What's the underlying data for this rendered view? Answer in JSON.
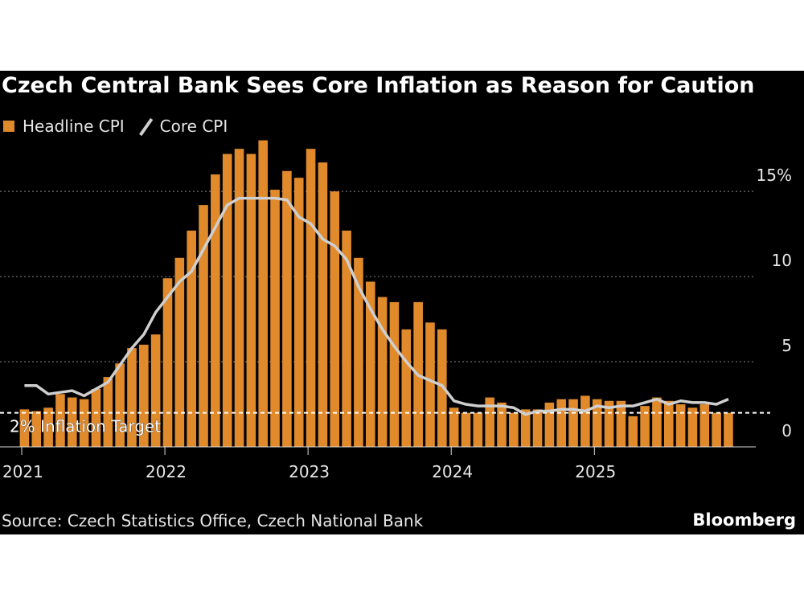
{
  "chart_data": {
    "type": "bar-line",
    "title": "Czech Central Bank Sees Core Inflation as Reason for Caution",
    "source": "Source: Czech Statistics Office, Czech National Bank",
    "brand": "Bloomberg",
    "categories": [
      "2021",
      null,
      null,
      null,
      null,
      null,
      null,
      null,
      null,
      null,
      null,
      null,
      "2022",
      null,
      null,
      null,
      null,
      null,
      null,
      null,
      null,
      null,
      null,
      null,
      "2023",
      null,
      null,
      null,
      null,
      null,
      null,
      null,
      null,
      null,
      null,
      null,
      "2024",
      null,
      null,
      null,
      null,
      null,
      null,
      null,
      null,
      null,
      null,
      null,
      "2025",
      null,
      null,
      null,
      null,
      null,
      null,
      null,
      null,
      null,
      null,
      null
    ],
    "series": [
      {
        "name": "Headline CPI",
        "kind": "bar",
        "color": "#e08a2c",
        "values": [
          2.2,
          2.1,
          2.3,
          3.1,
          2.9,
          2.8,
          3.4,
          4.1,
          4.9,
          5.8,
          6.0,
          6.6,
          9.9,
          11.1,
          12.7,
          14.2,
          16.0,
          17.2,
          17.5,
          17.2,
          18.0,
          15.1,
          16.2,
          15.8,
          17.5,
          16.7,
          15.0,
          12.7,
          11.1,
          9.7,
          8.8,
          8.5,
          6.9,
          8.5,
          7.3,
          6.9,
          2.3,
          2.0,
          2.0,
          2.9,
          2.6,
          2.0,
          2.2,
          2.2,
          2.6,
          2.8,
          2.8,
          3.0,
          2.8,
          2.7,
          2.7,
          1.8,
          2.4,
          2.9,
          2.7,
          2.5,
          2.3,
          2.5,
          2.0,
          2.0
        ]
      },
      {
        "name": "Core CPI",
        "kind": "line",
        "color": "#cfcfcf",
        "values": [
          3.6,
          3.6,
          3.1,
          3.2,
          3.3,
          3.0,
          3.4,
          3.8,
          4.8,
          5.8,
          6.6,
          7.9,
          8.8,
          9.7,
          10.3,
          11.6,
          12.9,
          14.2,
          14.6,
          14.6,
          14.6,
          14.6,
          14.5,
          13.5,
          13.1,
          12.2,
          11.8,
          11.0,
          9.4,
          8.1,
          6.9,
          5.9,
          5.0,
          4.2,
          3.9,
          3.6,
          2.7,
          2.5,
          2.4,
          2.4,
          2.4,
          2.3,
          1.9,
          2.1,
          2.1,
          2.2,
          2.2,
          2.1,
          2.4,
          2.3,
          2.4,
          2.4,
          2.6,
          2.8,
          2.5,
          2.7,
          2.6,
          2.6,
          2.5,
          2.8
        ]
      }
    ],
    "ylim": [
      0,
      18.5
    ],
    "yticks": [
      0,
      5,
      10,
      {
        "value": 15,
        "label": "15%"
      }
    ],
    "grid": true,
    "annotations": [
      {
        "value": 2,
        "label": "2% Inflation Target"
      }
    ]
  }
}
